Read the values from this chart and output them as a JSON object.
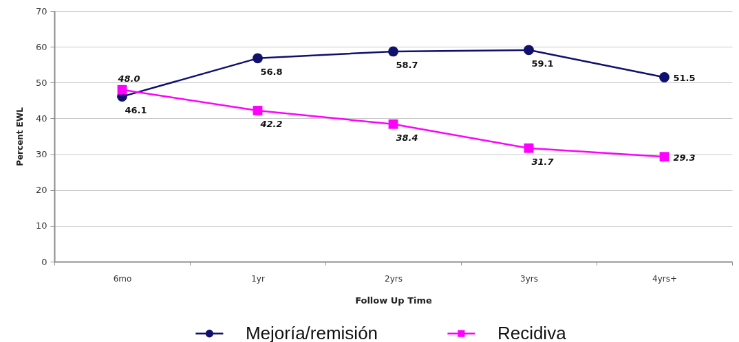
{
  "chart_data": {
    "type": "line",
    "xlabel": "Follow Up Time",
    "ylabel": "Percent EWL",
    "categories": [
      "6mo",
      "1yr",
      "2yrs",
      "3yrs",
      "4yrs+"
    ],
    "ylim": [
      0,
      70
    ],
    "yticks": [
      0,
      10,
      20,
      30,
      40,
      50,
      60,
      70
    ],
    "grid": "y",
    "legend": "bottom",
    "series": [
      {
        "name": "Mejoría/remisión",
        "color": "#10106e",
        "marker": "circle",
        "values": [
          46.1,
          56.8,
          58.7,
          59.1,
          51.5
        ],
        "value_labels": [
          "46.1",
          "56.8",
          "58.7",
          "59.1",
          "51.5"
        ]
      },
      {
        "name": "Recidiva",
        "color": "#ff00ff",
        "marker": "square",
        "values": [
          48.0,
          42.2,
          38.4,
          31.7,
          29.3
        ],
        "value_labels": [
          "48.0",
          "42.2",
          "38.4",
          "31.7",
          "29.3"
        ]
      }
    ]
  }
}
